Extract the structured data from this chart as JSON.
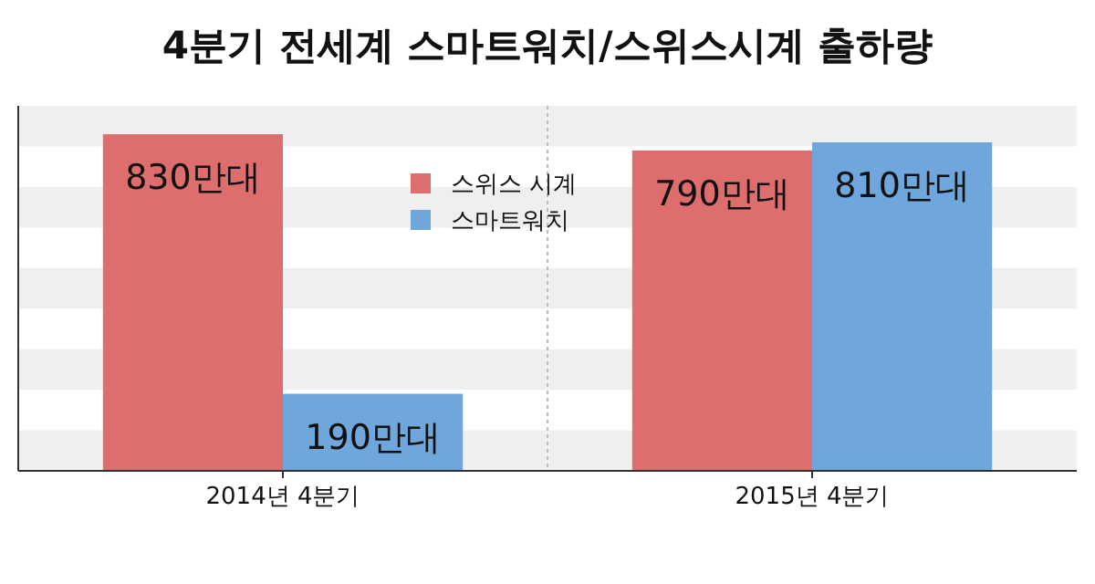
{
  "chart_data": {
    "type": "bar",
    "title": "4분기 전세계 스마트워치/스위스시계 출하량",
    "categories": [
      "2014년 4분기",
      "2015년 4분기"
    ],
    "series": [
      {
        "name": "스위스 시계",
        "color": "#de6d6d",
        "values": [
          830,
          790
        ],
        "value_labels": [
          "830만대",
          "790만대"
        ]
      },
      {
        "name": "스마트워치",
        "color": "#6fa6dc",
        "values": [
          190,
          810
        ],
        "value_labels": [
          "190만대",
          "810만대"
        ]
      }
    ],
    "ylim": [
      0,
      900
    ],
    "tick_labels": "x",
    "legend": "top",
    "bands": [
      {
        "axis": "y",
        "from": 0,
        "to": 100,
        "color": "#efefef"
      },
      {
        "axis": "y",
        "from": 200,
        "to": 300,
        "color": "#efefef"
      },
      {
        "axis": "y",
        "from": 400,
        "to": 500,
        "color": "#efefef"
      },
      {
        "axis": "y",
        "from": 600,
        "to": 700,
        "color": "#efefef"
      },
      {
        "axis": "y",
        "from": 800,
        "to": 900,
        "color": "#efefef"
      }
    ]
  }
}
